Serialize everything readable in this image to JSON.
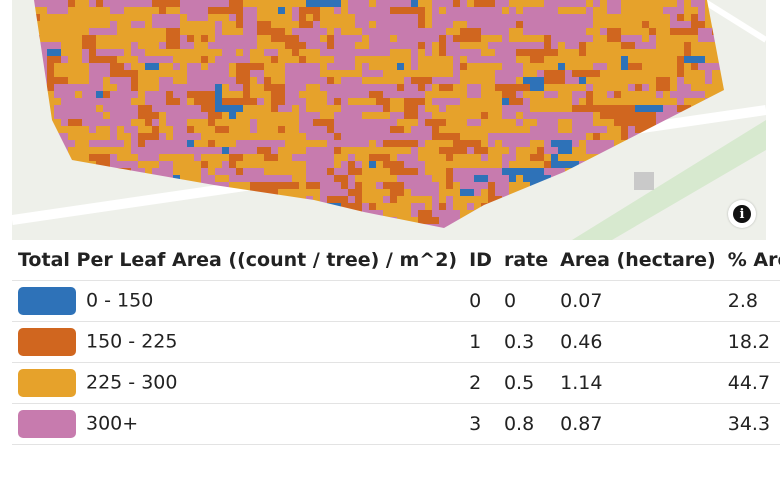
{
  "map": {
    "info_icon": "info-icon",
    "colors": {
      "background": "#eef0ea",
      "road": "#ffffff",
      "green": "#d7e9cf"
    }
  },
  "table": {
    "headers": {
      "name": "Total Per Leaf Area ((count / tree) / m^2)",
      "id": "ID",
      "rate": "rate",
      "area": "Area (hectare)",
      "pct": "% Area"
    },
    "rows": [
      {
        "label": "0 - 150",
        "id": "0",
        "rate": "0",
        "area": "0.07",
        "pct": "2.8",
        "color": "#2e72b8"
      },
      {
        "label": "150 - 225",
        "id": "1",
        "rate": "0.3",
        "area": "0.46",
        "pct": "18.2",
        "color": "#d0661f"
      },
      {
        "label": "225 - 300",
        "id": "2",
        "rate": "0.5",
        "area": "1.14",
        "pct": "44.7",
        "color": "#e6a22b"
      },
      {
        "label": "300+",
        "id": "3",
        "rate": "0.8",
        "area": "0.87",
        "pct": "34.3",
        "color": "#c77bae"
      }
    ]
  }
}
